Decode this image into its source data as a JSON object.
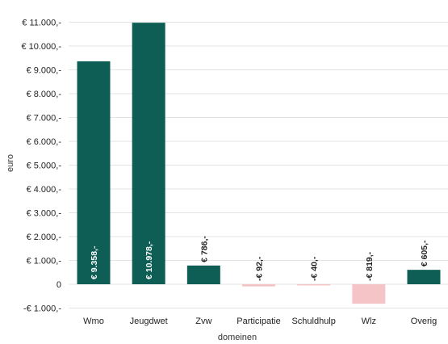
{
  "chart_data": {
    "type": "bar",
    "categories": [
      "Wmo",
      "Jeugdwet",
      "Zvw",
      "Participatie",
      "Schuldhulp",
      "Wlz",
      "Overig"
    ],
    "values": [
      9358,
      10978,
      786,
      -92,
      -40,
      -819,
      605
    ],
    "value_labels": [
      "€ 9.358,-",
      "€ 10.978,-",
      "€ 786,-",
      "-€ 92,-",
      "-€ 40,-",
      "-€ 819,-",
      "€ 605,-"
    ],
    "xlabel": "domeinen",
    "ylabel": "euro",
    "ylim": [
      -1000,
      11000
    ],
    "yticks": [
      -1000,
      0,
      1000,
      2000,
      3000,
      4000,
      5000,
      6000,
      7000,
      8000,
      9000,
      10000,
      11000
    ],
    "ytick_labels": [
      "-€ 1.000,-",
      "0",
      "€ 1.000,-",
      "€ 2.000,-",
      "€ 3.000,-",
      "€ 4.000,-",
      "€ 5.000,-",
      "€ 6.000,-",
      "€ 7.000,-",
      "€ 8.000,-",
      "€ 9.000,-",
      "€ 10.000,-",
      "€ 11.000,-"
    ],
    "grid": true,
    "colors": {
      "positive": "#0e5e56",
      "negative": "#f5c4c7",
      "text_light": "#ffffff",
      "text_dark": "#222222"
    }
  }
}
